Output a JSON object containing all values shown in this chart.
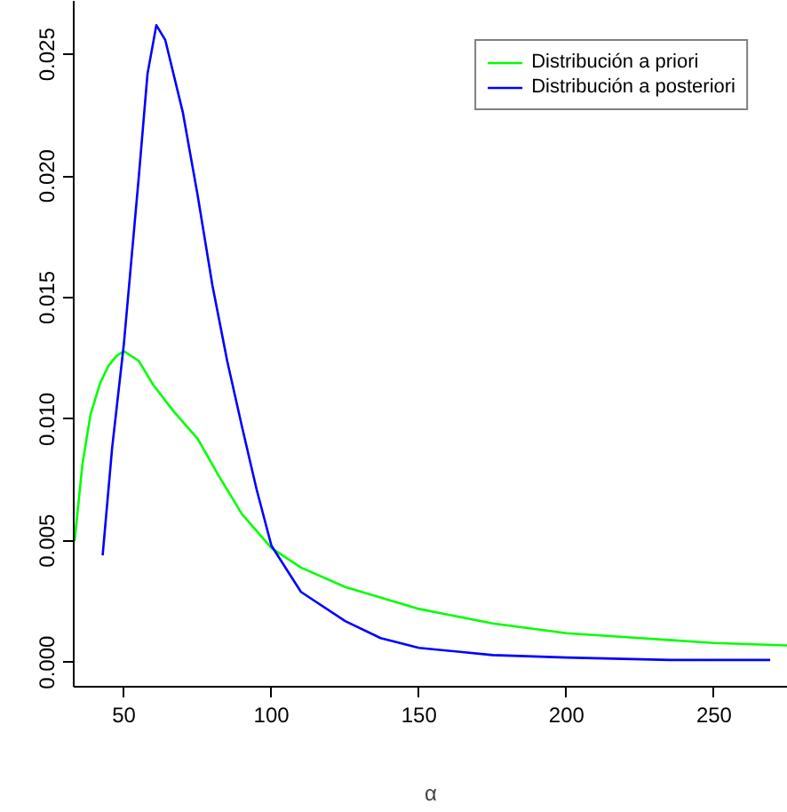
{
  "chart_data": {
    "type": "line",
    "xlabel": "α",
    "xlim": [
      33,
      275
    ],
    "ylim": [
      -0.001,
      0.0272
    ],
    "xticks": [
      50,
      100,
      150,
      200,
      250
    ],
    "yticks": [
      {
        "value": 0,
        "label": "0.000"
      },
      {
        "value": 0.005,
        "label": "0.005"
      },
      {
        "value": 0.01,
        "label": "0.010"
      },
      {
        "value": 0.015,
        "label": "0.015"
      },
      {
        "value": 0.02,
        "label": "0.020"
      },
      {
        "value": 0.025,
        "label": "0.025"
      }
    ],
    "grid": false,
    "legend": "top right",
    "marker": "none",
    "line_style": "solid",
    "series": [
      {
        "name": "Distribución a priori",
        "color": "#00ff00",
        "x": [
          33.3,
          36,
          38.7,
          42,
          44.8,
          47.5,
          50,
          55,
          60,
          67,
          75,
          82,
          90,
          100,
          110,
          125,
          150,
          175,
          200,
          225,
          250,
          275
        ],
        "values": [
          0.005,
          0.0082,
          0.0102,
          0.0115,
          0.0122,
          0.0126,
          0.0128,
          0.0124,
          0.0114,
          0.0103,
          0.0092,
          0.0077,
          0.0061,
          0.0047,
          0.0039,
          0.0031,
          0.0022,
          0.0016,
          0.0012,
          0.001,
          0.0008,
          0.0007
        ]
      },
      {
        "name": "Distribución a posteriori",
        "color": "#0000ff",
        "x": [
          42.8,
          46,
          50,
          55,
          58,
          61,
          64,
          70,
          75,
          80,
          85,
          90,
          95,
          100,
          110,
          125,
          137,
          150,
          175,
          200,
          235,
          269
        ],
        "values": [
          0.0044,
          0.0088,
          0.0131,
          0.0199,
          0.0242,
          0.0262,
          0.0256,
          0.0226,
          0.0192,
          0.0155,
          0.0124,
          0.0097,
          0.0071,
          0.0048,
          0.0029,
          0.0017,
          0.001,
          0.0006,
          0.0003,
          0.0002,
          0.0001,
          0.0001
        ]
      }
    ]
  }
}
